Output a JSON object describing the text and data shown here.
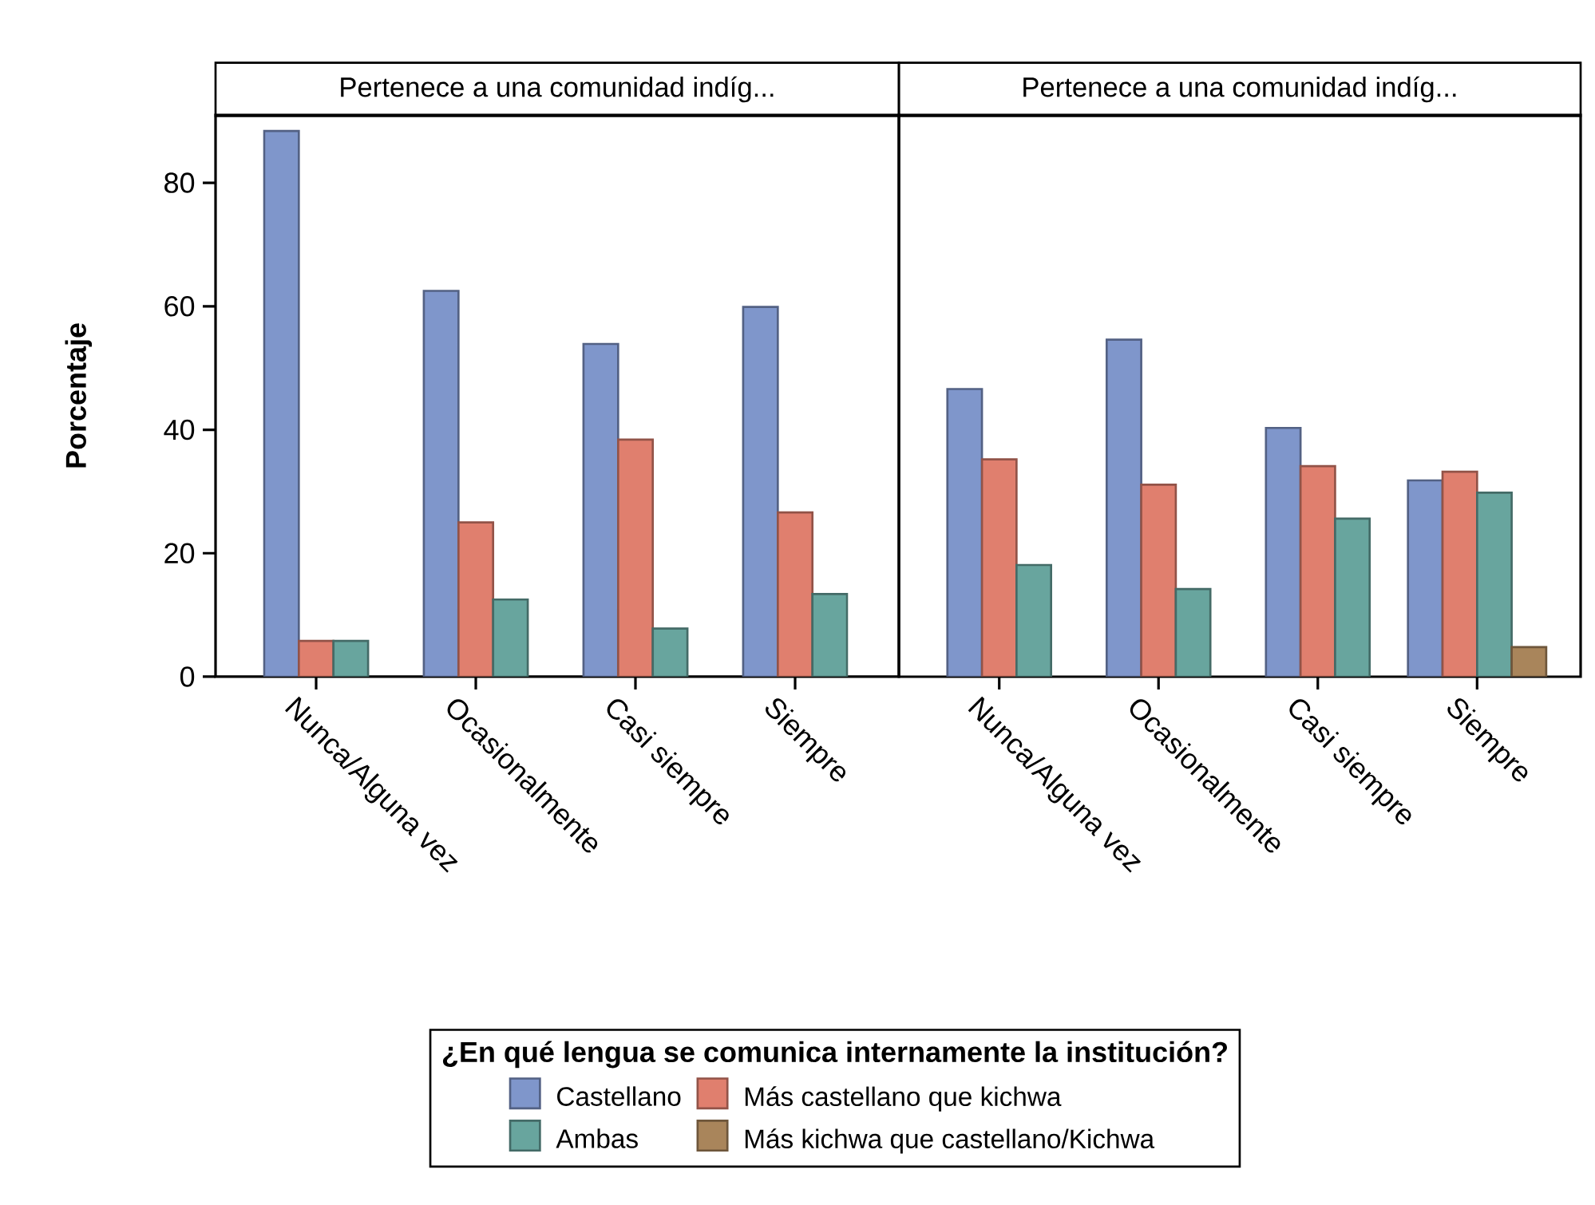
{
  "chart_data": [
    {
      "type": "bar",
      "title": "Pertenece a una comunidad indíg...",
      "ylabel": "Porcentaje",
      "categories": [
        "Nunca/Alguna vez",
        "Ocasionalmente",
        "Casi siempre",
        "Siempre"
      ],
      "ylim": [
        0,
        91
      ],
      "yticks": [
        0,
        20,
        40,
        60,
        80
      ],
      "series": [
        {
          "color": "#7f96cb",
          "values": [
            88.4,
            62.5,
            53.9,
            59.9
          ]
        },
        {
          "color": "#e07f6e",
          "values": [
            5.8,
            25.0,
            38.4,
            26.6
          ]
        },
        {
          "color": "#68a59e",
          "values": [
            5.8,
            12.5,
            7.8,
            13.4
          ]
        }
      ]
    },
    {
      "type": "bar",
      "title": "Pertenece a una comunidad indíg...",
      "categories": [
        "Nunca/Alguna vez",
        "Ocasionalmente",
        "Casi siempre",
        "Siempre"
      ],
      "ylim": [
        0,
        91
      ],
      "tick_labels": "x",
      "legend": "bottom",
      "legend_title": "¿En qué lengua se comunica internamente la institución?",
      "series": [
        {
          "name": "Castellano",
          "color": "#7f96cb",
          "values": [
            46.6,
            54.6,
            40.3,
            31.8
          ]
        },
        {
          "name": "Más castellano que kichwa",
          "color": "#e07f6e",
          "values": [
            35.2,
            31.1,
            34.1,
            33.2
          ]
        },
        {
          "name": "Ambas",
          "color": "#68a59e",
          "values": [
            18.1,
            14.2,
            25.6,
            29.8
          ]
        },
        {
          "name": "Más kichwa que castellano/Kichwa",
          "color": "#a9855b",
          "values": [
            null,
            null,
            null,
            4.8
          ]
        }
      ]
    }
  ]
}
